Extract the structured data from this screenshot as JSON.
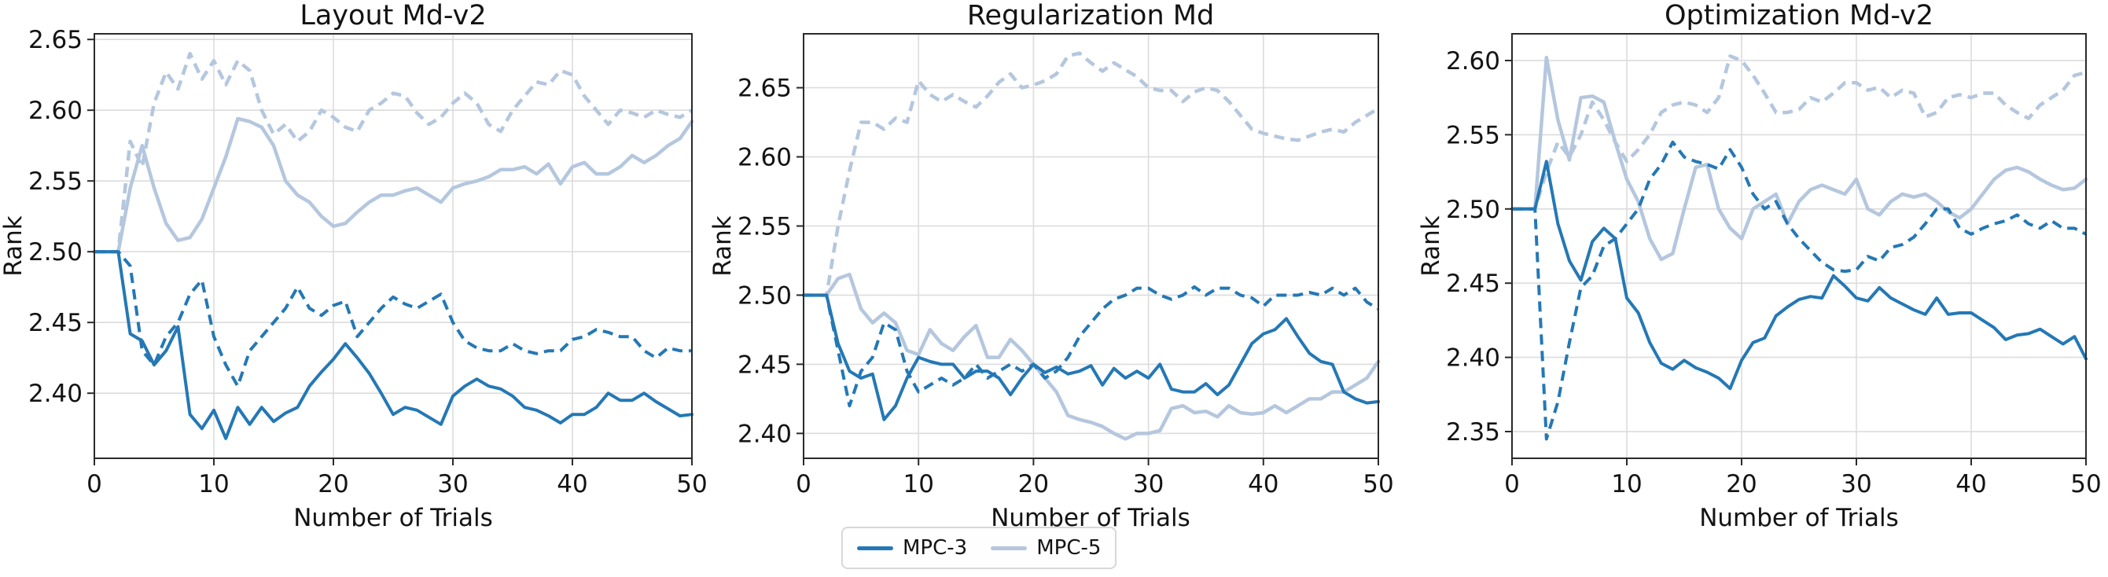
{
  "figure": {
    "ylabel": "Rank",
    "xlabel": "Number of Trials",
    "colors": {
      "mpc3": "#2478b5",
      "mpc5": "#b4c7de",
      "grid": "#dcdcdc",
      "spine": "#2a2a2a",
      "text": "#131313"
    }
  },
  "legend": {
    "entries": [
      {
        "label": "MPC-3",
        "color": "#2478b5"
      },
      {
        "label": "MPC-5",
        "color": "#b4c7de"
      }
    ]
  },
  "chart_data": [
    {
      "type": "line",
      "title": "Layout Md-v2",
      "xlabel": "Number of Trials",
      "ylabel": "Rank",
      "xlim": [
        0,
        50
      ],
      "ylim": [
        2.354,
        2.654
      ],
      "xticks": [
        0,
        10,
        20,
        30,
        40,
        50
      ],
      "xtick_labels": [
        "0",
        "10",
        "20",
        "30",
        "40",
        "50"
      ],
      "yticks": [
        2.4,
        2.45,
        2.5,
        2.55,
        2.6,
        2.65
      ],
      "ytick_labels": [
        "2.40",
        "2.45",
        "2.50",
        "2.55",
        "2.60",
        "2.65"
      ],
      "grid": true,
      "x_start": 1,
      "series": [
        {
          "name": "MPC-5",
          "style": "solid",
          "color": "#b4c7de",
          "values": [
            2.5,
            2.5,
            2.545,
            2.575,
            2.545,
            2.52,
            2.508,
            2.51,
            2.523,
            2.545,
            2.567,
            2.594,
            2.592,
            2.588,
            2.575,
            2.55,
            2.54,
            2.535,
            2.525,
            2.518,
            2.52,
            2.528,
            2.535,
            2.54,
            2.54,
            2.543,
            2.545,
            2.54,
            2.535,
            2.545,
            2.548,
            2.55,
            2.553,
            2.558,
            2.558,
            2.56,
            2.555,
            2.562,
            2.548,
            2.56,
            2.563,
            2.555,
            2.555,
            2.56,
            2.568,
            2.563,
            2.568,
            2.575,
            2.58,
            2.592
          ]
        },
        {
          "name": "MPC-5",
          "style": "dashed",
          "color": "#b4c7de",
          "values": [
            2.5,
            2.5,
            2.578,
            2.56,
            2.605,
            2.627,
            2.615,
            2.64,
            2.622,
            2.635,
            2.618,
            2.635,
            2.628,
            2.6,
            2.583,
            2.59,
            2.578,
            2.585,
            2.6,
            2.595,
            2.588,
            2.585,
            2.6,
            2.605,
            2.612,
            2.61,
            2.598,
            2.59,
            2.595,
            2.605,
            2.612,
            2.605,
            2.59,
            2.585,
            2.6,
            2.61,
            2.62,
            2.618,
            2.628,
            2.625,
            2.61,
            2.6,
            2.59,
            2.6,
            2.598,
            2.595,
            2.6,
            2.597,
            2.595,
            2.6
          ]
        },
        {
          "name": "MPC-3",
          "style": "solid",
          "color": "#2478b5",
          "values": [
            2.5,
            2.5,
            2.442,
            2.437,
            2.42,
            2.43,
            2.447,
            2.385,
            2.375,
            2.388,
            2.368,
            2.39,
            2.378,
            2.39,
            2.38,
            2.386,
            2.39,
            2.405,
            2.415,
            2.424,
            2.435,
            2.425,
            2.414,
            2.4,
            2.385,
            2.39,
            2.388,
            2.383,
            2.378,
            2.398,
            2.405,
            2.41,
            2.405,
            2.403,
            2.398,
            2.39,
            2.388,
            2.384,
            2.379,
            2.385,
            2.385,
            2.39,
            2.4,
            2.395,
            2.395,
            2.4,
            2.394,
            2.389,
            2.384,
            2.385
          ]
        },
        {
          "name": "MPC-3",
          "style": "dashed",
          "color": "#2478b5",
          "values": [
            2.5,
            2.5,
            2.49,
            2.43,
            2.42,
            2.44,
            2.45,
            2.47,
            2.48,
            2.44,
            2.42,
            2.405,
            2.43,
            2.44,
            2.45,
            2.46,
            2.475,
            2.46,
            2.455,
            2.462,
            2.465,
            2.44,
            2.45,
            2.46,
            2.468,
            2.463,
            2.46,
            2.465,
            2.47,
            2.45,
            2.437,
            2.432,
            2.43,
            2.43,
            2.435,
            2.43,
            2.428,
            2.43,
            2.43,
            2.438,
            2.44,
            2.445,
            2.443,
            2.44,
            2.44,
            2.43,
            2.425,
            2.432,
            2.43,
            2.43
          ]
        }
      ]
    },
    {
      "type": "line",
      "title": "Regularization Md",
      "xlabel": "Number of Trials",
      "ylabel": "Rank",
      "xlim": [
        0,
        50
      ],
      "ylim": [
        2.382,
        2.689
      ],
      "xticks": [
        0,
        10,
        20,
        30,
        40,
        50
      ],
      "xtick_labels": [
        "0",
        "10",
        "20",
        "30",
        "40",
        "50"
      ],
      "yticks": [
        2.4,
        2.45,
        2.5,
        2.55,
        2.6,
        2.65
      ],
      "ytick_labels": [
        "2.40",
        "2.45",
        "2.50",
        "2.55",
        "2.60",
        "2.65"
      ],
      "grid": true,
      "x_start": 1,
      "series": [
        {
          "name": "MPC-5",
          "style": "solid",
          "color": "#b4c7de",
          "values": [
            2.5,
            2.5,
            2.512,
            2.515,
            2.49,
            2.48,
            2.487,
            2.48,
            2.46,
            2.457,
            2.475,
            2.465,
            2.46,
            2.47,
            2.478,
            2.455,
            2.455,
            2.468,
            2.46,
            2.45,
            2.44,
            2.43,
            2.413,
            2.41,
            2.408,
            2.405,
            2.4,
            2.396,
            2.4,
            2.4,
            2.402,
            2.418,
            2.42,
            2.415,
            2.416,
            2.412,
            2.42,
            2.415,
            2.414,
            2.415,
            2.42,
            2.415,
            2.42,
            2.425,
            2.425,
            2.43,
            2.43,
            2.435,
            2.44,
            2.452
          ]
        },
        {
          "name": "MPC-5",
          "style": "dashed",
          "color": "#b4c7de",
          "values": [
            2.5,
            2.5,
            2.55,
            2.59,
            2.625,
            2.625,
            2.62,
            2.628,
            2.625,
            2.655,
            2.645,
            2.64,
            2.645,
            2.64,
            2.636,
            2.644,
            2.654,
            2.66,
            2.65,
            2.652,
            2.655,
            2.66,
            2.673,
            2.675,
            2.668,
            2.662,
            2.668,
            2.663,
            2.658,
            2.65,
            2.648,
            2.648,
            2.64,
            2.647,
            2.65,
            2.648,
            2.64,
            2.63,
            2.62,
            2.617,
            2.615,
            2.613,
            2.612,
            2.615,
            2.618,
            2.62,
            2.618,
            2.625,
            2.63,
            2.635
          ]
        },
        {
          "name": "MPC-3",
          "style": "solid",
          "color": "#2478b5",
          "values": [
            2.5,
            2.5,
            2.465,
            2.445,
            2.44,
            2.443,
            2.41,
            2.42,
            2.44,
            2.455,
            2.452,
            2.45,
            2.45,
            2.44,
            2.445,
            2.445,
            2.44,
            2.428,
            2.44,
            2.45,
            2.444,
            2.448,
            2.443,
            2.445,
            2.449,
            2.435,
            2.447,
            2.44,
            2.445,
            2.44,
            2.45,
            2.432,
            2.43,
            2.43,
            2.436,
            2.428,
            2.435,
            2.45,
            2.465,
            2.472,
            2.475,
            2.483,
            2.47,
            2.458,
            2.452,
            2.45,
            2.43,
            2.425,
            2.422,
            2.423
          ]
        },
        {
          "name": "MPC-3",
          "style": "dashed",
          "color": "#2478b5",
          "values": [
            2.5,
            2.5,
            2.46,
            2.42,
            2.445,
            2.455,
            2.48,
            2.475,
            2.445,
            2.43,
            2.435,
            2.44,
            2.435,
            2.44,
            2.45,
            2.44,
            2.445,
            2.45,
            2.445,
            2.45,
            2.44,
            2.445,
            2.455,
            2.47,
            2.48,
            2.49,
            2.497,
            2.5,
            2.505,
            2.505,
            2.5,
            2.497,
            2.5,
            2.506,
            2.5,
            2.505,
            2.505,
            2.5,
            2.498,
            2.492,
            2.5,
            2.5,
            2.5,
            2.502,
            2.5,
            2.505,
            2.5,
            2.505,
            2.495,
            2.49
          ]
        }
      ]
    },
    {
      "type": "line",
      "title": "Optimization Md-v2",
      "xlabel": "Number of Trials",
      "ylabel": "Rank",
      "xlim": [
        0,
        50
      ],
      "ylim": [
        2.332,
        2.618
      ],
      "xticks": [
        0,
        10,
        20,
        30,
        40,
        50
      ],
      "xtick_labels": [
        "0",
        "10",
        "20",
        "30",
        "40",
        "50"
      ],
      "yticks": [
        2.35,
        2.4,
        2.45,
        2.5,
        2.55,
        2.6
      ],
      "ytick_labels": [
        "2.35",
        "2.40",
        "2.45",
        "2.50",
        "2.55",
        "2.60"
      ],
      "grid": true,
      "x_start": 1,
      "series": [
        {
          "name": "MPC-5",
          "style": "solid",
          "color": "#b4c7de",
          "values": [
            2.5,
            2.5,
            2.602,
            2.56,
            2.533,
            2.575,
            2.576,
            2.572,
            2.545,
            2.52,
            2.505,
            2.48,
            2.466,
            2.47,
            2.5,
            2.528,
            2.53,
            2.5,
            2.487,
            2.48,
            2.5,
            2.505,
            2.51,
            2.49,
            2.505,
            2.513,
            2.516,
            2.513,
            2.51,
            2.52,
            2.5,
            2.496,
            2.505,
            2.51,
            2.508,
            2.51,
            2.505,
            2.498,
            2.494,
            2.5,
            2.51,
            2.52,
            2.526,
            2.528,
            2.525,
            2.52,
            2.516,
            2.513,
            2.514,
            2.52
          ]
        },
        {
          "name": "MPC-5",
          "style": "dashed",
          "color": "#b4c7de",
          "values": [
            2.5,
            2.5,
            2.525,
            2.545,
            2.535,
            2.55,
            2.572,
            2.56,
            2.545,
            2.532,
            2.54,
            2.55,
            2.565,
            2.57,
            2.572,
            2.57,
            2.565,
            2.575,
            2.603,
            2.6,
            2.59,
            2.578,
            2.565,
            2.565,
            2.567,
            2.575,
            2.572,
            2.578,
            2.585,
            2.585,
            2.58,
            2.582,
            2.575,
            2.58,
            2.578,
            2.562,
            2.565,
            2.575,
            2.577,
            2.575,
            2.578,
            2.578,
            2.57,
            2.565,
            2.561,
            2.57,
            2.575,
            2.58,
            2.59,
            2.592
          ]
        },
        {
          "name": "MPC-3",
          "style": "solid",
          "color": "#2478b5",
          "values": [
            2.5,
            2.5,
            2.532,
            2.49,
            2.465,
            2.452,
            2.478,
            2.487,
            2.48,
            2.44,
            2.43,
            2.41,
            2.396,
            2.392,
            2.398,
            2.393,
            2.39,
            2.386,
            2.379,
            2.398,
            2.41,
            2.413,
            2.428,
            2.434,
            2.439,
            2.441,
            2.44,
            2.455,
            2.448,
            2.44,
            2.438,
            2.447,
            2.44,
            2.436,
            2.432,
            2.429,
            2.44,
            2.429,
            2.43,
            2.43,
            2.425,
            2.42,
            2.412,
            2.415,
            2.416,
            2.419,
            2.414,
            2.409,
            2.414,
            2.399
          ]
        },
        {
          "name": "MPC-3",
          "style": "dashed",
          "color": "#2478b5",
          "values": [
            2.5,
            2.5,
            2.345,
            2.37,
            2.41,
            2.447,
            2.455,
            2.475,
            2.48,
            2.49,
            2.5,
            2.52,
            2.53,
            2.545,
            2.535,
            2.532,
            2.53,
            2.527,
            2.54,
            2.528,
            2.51,
            2.5,
            2.505,
            2.49,
            2.48,
            2.472,
            2.464,
            2.459,
            2.458,
            2.459,
            2.468,
            2.465,
            2.474,
            2.476,
            2.481,
            2.49,
            2.5,
            2.5,
            2.487,
            2.483,
            2.487,
            2.49,
            2.492,
            2.496,
            2.49,
            2.487,
            2.492,
            2.487,
            2.487,
            2.483
          ]
        }
      ]
    }
  ]
}
